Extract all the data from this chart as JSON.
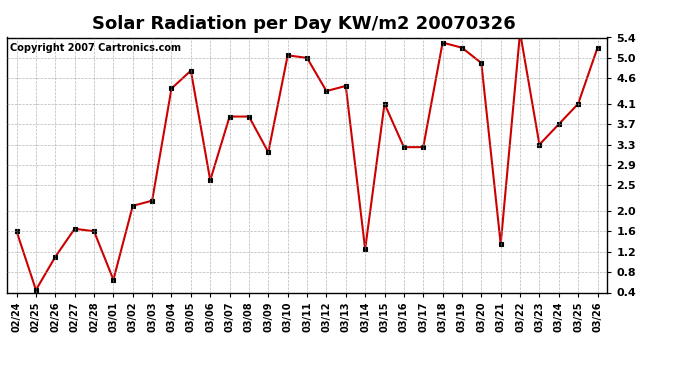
{
  "title": "Solar Radiation per Day KW/m2 20070326",
  "copyright": "Copyright 2007 Cartronics.com",
  "dates": [
    "02/24",
    "02/25",
    "02/26",
    "02/27",
    "02/28",
    "03/01",
    "03/02",
    "03/03",
    "03/04",
    "03/05",
    "03/06",
    "03/07",
    "03/08",
    "03/09",
    "03/10",
    "03/11",
    "03/12",
    "03/13",
    "03/14",
    "03/15",
    "03/16",
    "03/17",
    "03/18",
    "03/19",
    "03/20",
    "03/21",
    "03/22",
    "03/23",
    "03/24",
    "03/25",
    "03/26"
  ],
  "values": [
    1.6,
    0.45,
    1.1,
    1.65,
    1.6,
    0.65,
    2.1,
    2.2,
    4.4,
    4.75,
    2.6,
    3.85,
    3.85,
    3.15,
    5.05,
    5.0,
    4.35,
    4.45,
    1.25,
    4.1,
    3.25,
    3.25,
    5.3,
    5.2,
    4.9,
    1.35,
    5.5,
    3.3,
    3.7,
    4.1,
    5.2
  ],
  "line_color": "#cc0000",
  "marker": "s",
  "marker_color": "black",
  "marker_size": 3,
  "ylim": [
    0.4,
    5.4
  ],
  "yticks": [
    0.4,
    0.8,
    1.2,
    1.6,
    2.0,
    2.5,
    2.9,
    3.3,
    3.7,
    4.1,
    4.6,
    5.0,
    5.4
  ],
  "background_color": "#ffffff",
  "grid_color": "#999999",
  "title_fontsize": 13,
  "copyright_fontsize": 7,
  "tick_fontsize": 7,
  "ytick_fontsize": 8
}
